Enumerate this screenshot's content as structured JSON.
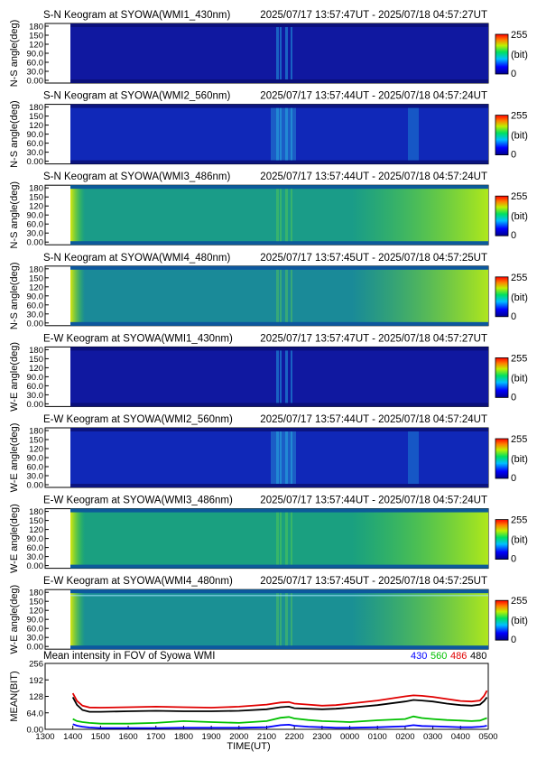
{
  "panels": [
    {
      "title": "S-N Keogram at SYOWA(WMI1_430nm)",
      "time_range": "2025/07/17 13:57:47UT - 2025/07/18 04:57:27UT",
      "ylabel": "N-S angle(deg)",
      "base": "#1018a0"
    },
    {
      "title": "S-N Keogram at SYOWA(WMI2_560nm)",
      "time_range": "2025/07/17 13:57:44UT - 2025/07/18 04:57:24UT",
      "ylabel": "N-S angle(deg)",
      "base": "#1028b8"
    },
    {
      "title": "S-N Keogram at SYOWA(WMI3_486nm)",
      "time_range": "2025/07/17 13:57:44UT - 2025/07/18 04:57:24UT",
      "ylabel": "N-S angle(deg)",
      "base": "#1a9c88"
    },
    {
      "title": "S-N Keogram at SYOWA(WMI4_480nm)",
      "time_range": "2025/07/17 13:57:45UT - 2025/07/18 04:57:25UT",
      "ylabel": "N-S angle(deg)",
      "base": "#1a8a98"
    },
    {
      "title": "E-W Keogram at SYOWA(WMI1_430nm)",
      "time_range": "2025/07/17 13:57:47UT - 2025/07/18 04:57:27UT",
      "ylabel": "W-E angle(deg)",
      "base": "#1018a0"
    },
    {
      "title": "E-W Keogram at SYOWA(WMI2_560nm)",
      "time_range": "2025/07/17 13:57:44UT - 2025/07/18 04:57:24UT",
      "ylabel": "W-E angle(deg)",
      "base": "#1028b8"
    },
    {
      "title": "E-W Keogram at SYOWA(WMI3_486nm)",
      "time_range": "2025/07/17 13:57:44UT - 2025/07/18 04:57:24UT",
      "ylabel": "W-E angle(deg)",
      "base": "#1aa080"
    },
    {
      "title": "E-W Keogram at SYOWA(WMI4_480nm)",
      "time_range": "2025/07/17 13:57:45UT - 2025/07/18 04:57:25UT",
      "ylabel": "W-E angle(deg)",
      "base": "#1a9094"
    }
  ],
  "angle_ticks": [
    "180",
    "150",
    "120",
    "90.0",
    "60.0",
    "30.0",
    "0.00"
  ],
  "colorbar": {
    "max": "255",
    "unit": "(bit)",
    "min": "0"
  },
  "chart_data": {
    "type": "line",
    "title": "Mean intensity in FOV of Syowa WMI",
    "xlabel": "TIME(UT)",
    "ylabel": "MEAN(BIT)",
    "x_ticks": [
      "1300",
      "1400",
      "1500",
      "1600",
      "1700",
      "1800",
      "1900",
      "2000",
      "2100",
      "2200",
      "2300",
      "0000",
      "0100",
      "0200",
      "0300",
      "0400",
      "0500"
    ],
    "y_ticks": [
      "256",
      "192",
      "128",
      "64.0",
      "0.00"
    ],
    "ylim": [
      0,
      256
    ],
    "x": [
      14.0,
      14.15,
      14.35,
      14.6,
      15,
      16,
      17,
      18,
      19,
      20,
      21,
      21.5,
      21.8,
      22,
      22.5,
      23,
      23.5,
      24,
      25,
      26,
      26.3,
      26.6,
      27,
      27.5,
      28,
      28.4,
      28.7,
      28.85,
      28.95
    ],
    "series": [
      {
        "name": "430",
        "color": "#0000ff",
        "values": [
          20,
          14,
          10,
          7,
          5,
          5,
          5,
          6,
          6,
          6,
          8,
          16,
          18,
          14,
          10,
          8,
          6,
          6,
          8,
          12,
          16,
          13,
          12,
          10,
          8,
          8,
          10,
          12,
          14
        ]
      },
      {
        "name": "560",
        "color": "#00c000",
        "values": [
          40,
          32,
          28,
          25,
          22,
          22,
          25,
          32,
          28,
          25,
          32,
          45,
          48,
          42,
          36,
          32,
          30,
          28,
          35,
          40,
          50,
          44,
          40,
          36,
          34,
          32,
          34,
          40,
          44
        ]
      },
      {
        "name": "486",
        "color": "#e00000",
        "values": [
          140,
          110,
          92,
          85,
          84,
          86,
          88,
          86,
          84,
          88,
          96,
          104,
          106,
          100,
          96,
          92,
          94,
          100,
          112,
          128,
          132,
          130,
          126,
          118,
          110,
          108,
          112,
          130,
          150
        ]
      },
      {
        "name": "480",
        "color": "#000000",
        "values": [
          125,
          95,
          75,
          68,
          68,
          70,
          72,
          70,
          70,
          72,
          78,
          86,
          88,
          82,
          80,
          78,
          80,
          84,
          94,
          108,
          114,
          112,
          108,
          100,
          94,
          92,
          96,
          110,
          124
        ]
      }
    ]
  }
}
